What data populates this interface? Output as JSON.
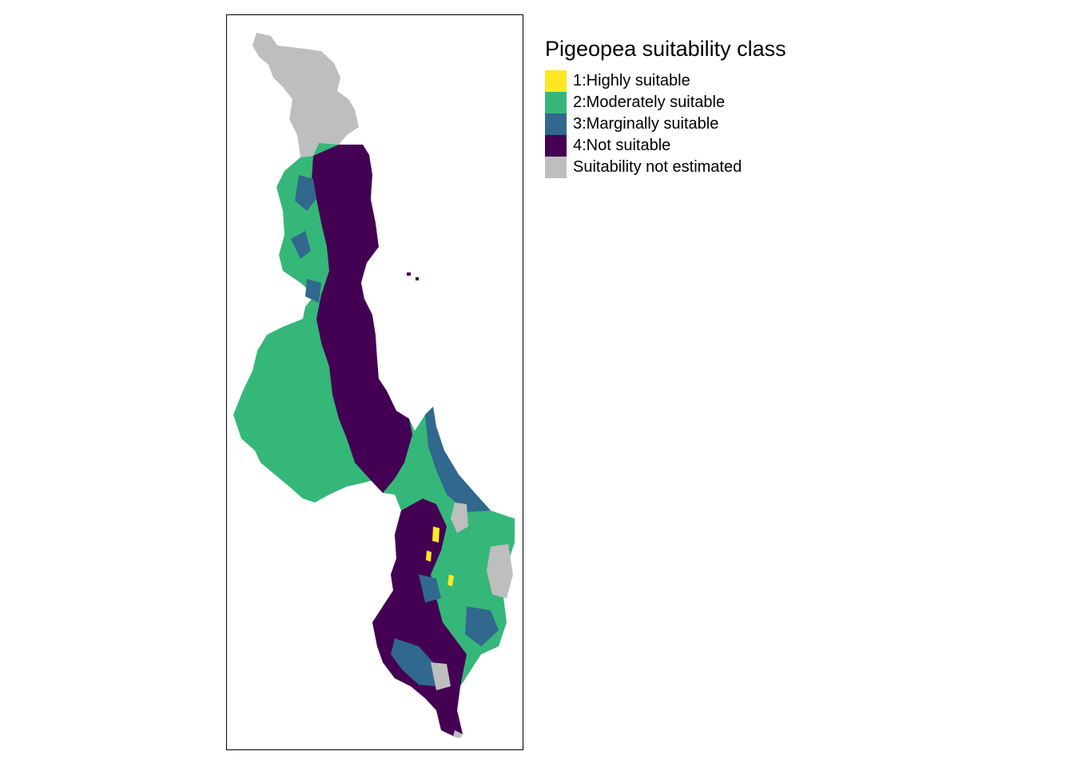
{
  "legend": {
    "title": "Pigeopea suitability class",
    "items": [
      {
        "label": "1:Highly suitable",
        "color": "#fde725"
      },
      {
        "label": "2:Moderately suitable",
        "color": "#35b779"
      },
      {
        "label": "3:Marginally suitable",
        "color": "#31688e"
      },
      {
        "label": "4:Not suitable",
        "color": "#440154"
      },
      {
        "label": "Suitability not estimated",
        "color": "#bebebe"
      }
    ]
  },
  "map": {
    "colors": {
      "highly": "#fde725",
      "moderately": "#35b779",
      "marginally": "#31688e",
      "not_suitable": "#440154",
      "not_estimated": "#bebebe",
      "lake": "#ffffff"
    }
  }
}
